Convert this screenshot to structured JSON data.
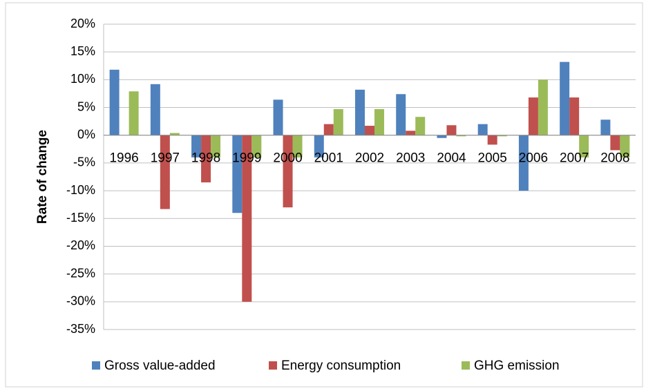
{
  "chart_data": {
    "type": "bar",
    "y_axis_label": "Rate of change",
    "categories": [
      "1996",
      "1997",
      "1998",
      "1999",
      "2000",
      "2001",
      "2002",
      "2003",
      "2004",
      "2005",
      "2006",
      "2007",
      "2008"
    ],
    "series": [
      {
        "name": "Gross value-added",
        "color": "#4f81bd",
        "values": [
          11.8,
          9.2,
          -4,
          -14,
          6.4,
          -4,
          8.2,
          7.4,
          -0.5,
          2,
          -10,
          13.2,
          2.8
        ]
      },
      {
        "name": "Energy consumption",
        "color": "#c0504d",
        "values": [
          0,
          -13.3,
          -8.5,
          -30,
          -13,
          2,
          1.7,
          0.8,
          1.8,
          -1.7,
          6.8,
          6.8,
          -2.7
        ]
      },
      {
        "name": "GHG emission",
        "color": "#9bbb59",
        "values": [
          7.9,
          0.4,
          -4,
          -4,
          -4,
          4.7,
          4.7,
          3.3,
          -0.2,
          -0.2,
          10,
          -4,
          -4
        ]
      }
    ],
    "ylim": [
      -35,
      20
    ],
    "yticks": [
      {
        "value": -35,
        "label": "-35%"
      },
      {
        "value": -30,
        "label": "-30%"
      },
      {
        "value": -25,
        "label": "-25%"
      },
      {
        "value": -20,
        "label": "-20%"
      },
      {
        "value": -15,
        "label": "-15%"
      },
      {
        "value": -10,
        "label": "-10%"
      },
      {
        "value": -5,
        "label": "-5%"
      },
      {
        "value": 0,
        "label": "0%"
      },
      {
        "value": 5,
        "label": "5%"
      },
      {
        "value": 10,
        "label": "10%"
      },
      {
        "value": 15,
        "label": "15%"
      },
      {
        "value": 20,
        "label": "20%"
      }
    ],
    "grid": true,
    "legend": "bottom"
  }
}
